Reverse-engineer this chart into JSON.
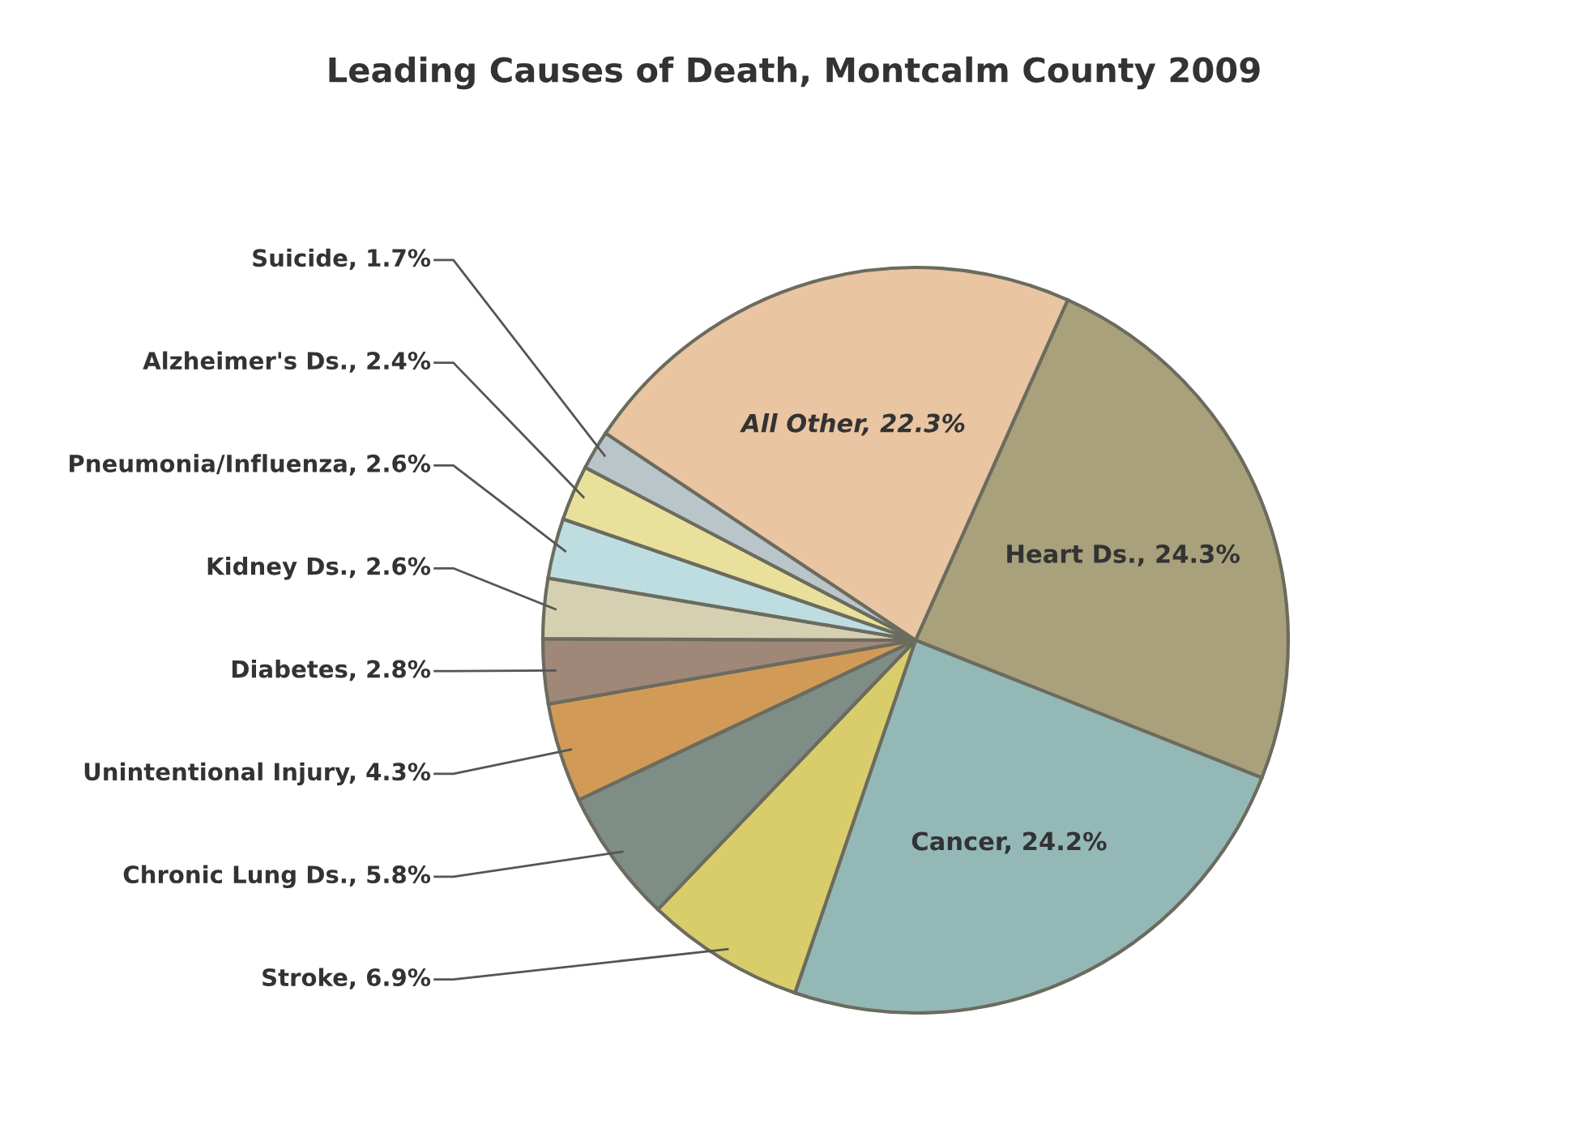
{
  "chart_data": {
    "type": "pie",
    "title": "Leading Causes of Death, Montcalm County 2009",
    "categories": [
      "Heart Ds.",
      "Cancer",
      "Stroke",
      "Chronic Lung Ds.",
      "Unintentional Injury",
      "Diabetes",
      "Kidney Ds.",
      "Pneumonia/Influenza",
      "Alzheimer's Ds.",
      "Suicide",
      "All Other"
    ],
    "values": [
      24.3,
      24.2,
      6.9,
      5.8,
      4.3,
      2.8,
      2.6,
      2.6,
      2.4,
      1.7,
      22.3
    ],
    "value_labels": [
      "24.3%",
      "24.2%",
      "6.9%",
      "5.8%",
      "4.3%",
      "2.8%",
      "2.6%",
      "2.6%",
      "2.4%",
      "1.7%",
      "22.3%"
    ],
    "colors": [
      "#a9a17b",
      "#94b8b6",
      "#d9cd6b",
      "#7f8d87",
      "#d19b57",
      "#a08878",
      "#d5d0b1",
      "#bddde1",
      "#e9e19b",
      "#b9c5c9",
      "#e9c5a1"
    ],
    "legend": false
  }
}
